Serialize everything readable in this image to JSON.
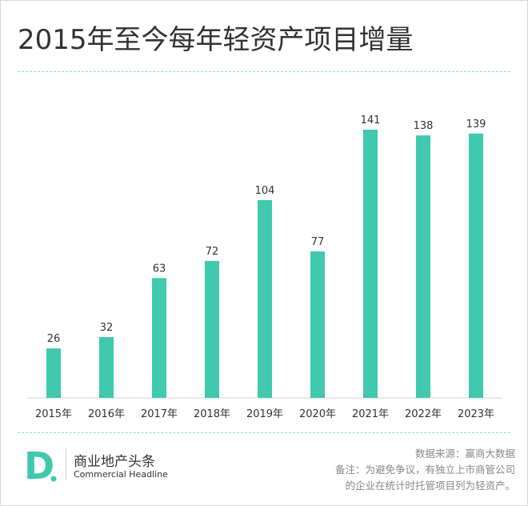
{
  "title": "2015年至今每年轻资产项目增量",
  "colors": {
    "bar": "#40c9ad",
    "accent": "#40c9ad",
    "text": "#333333",
    "muted": "#888888"
  },
  "chart_data": {
    "type": "bar",
    "categories": [
      "2015年",
      "2016年",
      "2017年",
      "2018年",
      "2019年",
      "2020年",
      "2021年",
      "2022年",
      "2023年"
    ],
    "values": [
      26,
      32,
      63,
      72,
      104,
      77,
      141,
      138,
      139
    ],
    "title": "2015年至今每年轻资产项目增量",
    "xlabel": "",
    "ylabel": "",
    "ylim": [
      0,
      141
    ],
    "grid": false,
    "legend": "none"
  },
  "footer": {
    "logo_letter": "D",
    "brand_cn": "商业地产头条",
    "brand_en": "Commercial Headline",
    "source": "数据来源：赢商大数据",
    "note_line1": "备注：为避免争议，有独立上市商管公司",
    "note_line2": "的企业在统计时托管项目列为轻资产。"
  }
}
